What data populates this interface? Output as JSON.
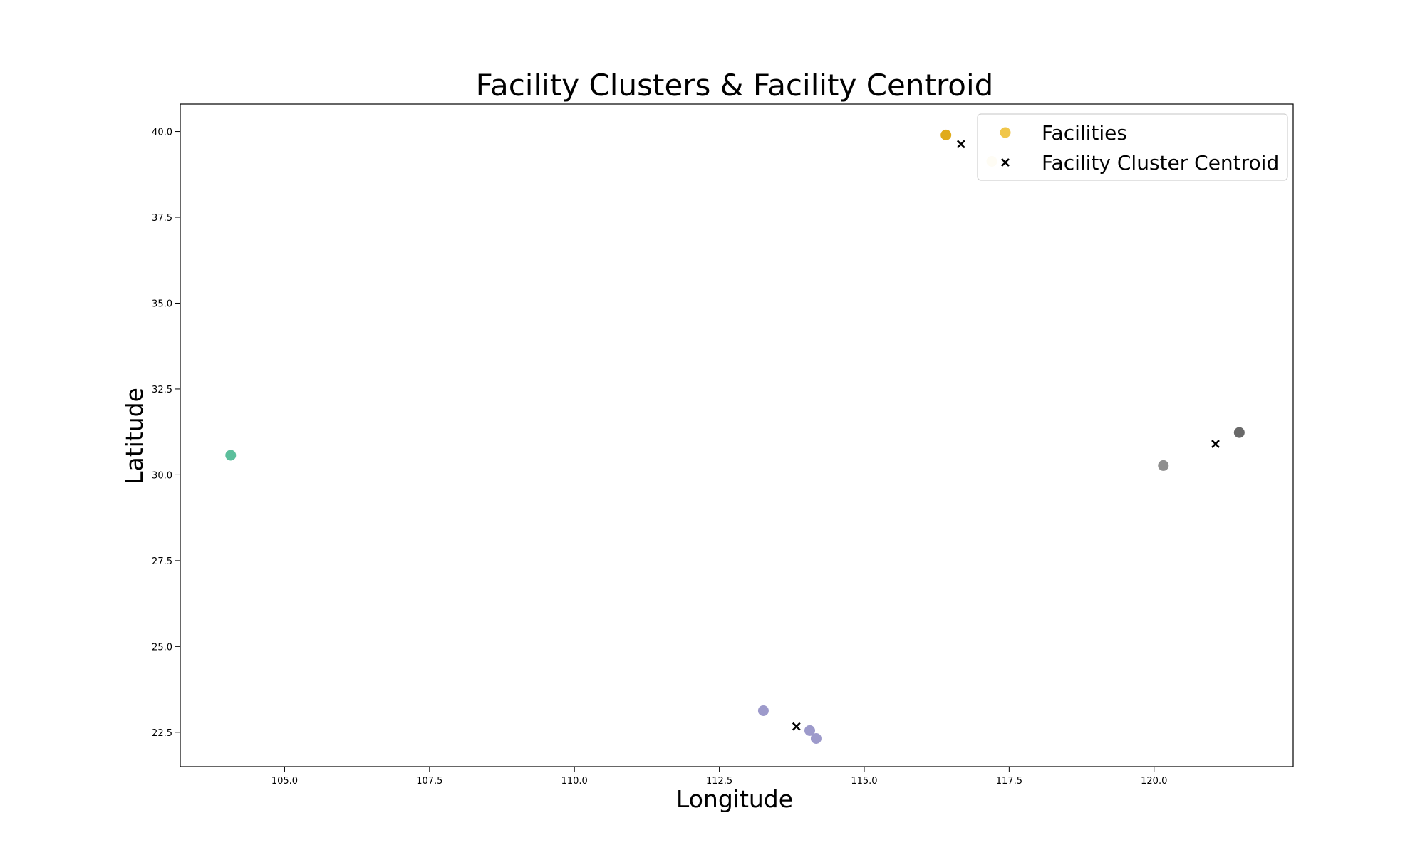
{
  "chart_data": {
    "type": "scatter",
    "title": "Facility Clusters & Facility Centroid",
    "xlabel": "Longitude",
    "ylabel": "Latitude",
    "xlim": [
      103.2,
      122.4
    ],
    "ylim": [
      21.5,
      40.8
    ],
    "x_ticks": [
      105.0,
      107.5,
      110.0,
      112.5,
      115.0,
      117.5,
      120.0
    ],
    "y_ticks": [
      22.5,
      25.0,
      27.5,
      30.0,
      32.5,
      35.0,
      37.5,
      40.0
    ],
    "x_tick_labels": [
      "105.0",
      "107.5",
      "110.0",
      "112.5",
      "115.0",
      "117.5",
      "120.0"
    ],
    "y_tick_labels": [
      "22.5",
      "25.0",
      "27.5",
      "30.0",
      "32.5",
      "35.0",
      "37.5",
      "40.0"
    ],
    "grid": false,
    "legend": {
      "position": "top-right",
      "entries": [
        {
          "label": "Facilities",
          "marker": "circle",
          "color": "#f0c64a"
        },
        {
          "label": "Facility Cluster Centroid",
          "marker": "x",
          "color": "#000000"
        }
      ]
    },
    "series": [
      {
        "name": "Facilities",
        "marker": "circle",
        "points": [
          {
            "x": 104.07,
            "y": 30.57,
            "color": "#5cbf9c"
          },
          {
            "x": 113.26,
            "y": 23.13,
            "color": "#9d9acb"
          },
          {
            "x": 114.06,
            "y": 22.55,
            "color": "#9d9acb"
          },
          {
            "x": 114.17,
            "y": 22.32,
            "color": "#9d9acb"
          },
          {
            "x": 116.41,
            "y": 39.9,
            "color": "#e0ab1a"
          },
          {
            "x": 117.2,
            "y": 39.13,
            "color": "#f7e8b6"
          },
          {
            "x": 120.16,
            "y": 30.27,
            "color": "#8f8f8f"
          },
          {
            "x": 121.47,
            "y": 31.23,
            "color": "#696969"
          }
        ]
      },
      {
        "name": "Facility Cluster Centroid",
        "marker": "x",
        "points": [
          {
            "x": 113.83,
            "y": 22.67,
            "color": "#000000"
          },
          {
            "x": 116.67,
            "y": 39.63,
            "color": "#000000"
          },
          {
            "x": 121.06,
            "y": 30.9,
            "color": "#000000"
          }
        ]
      }
    ]
  }
}
